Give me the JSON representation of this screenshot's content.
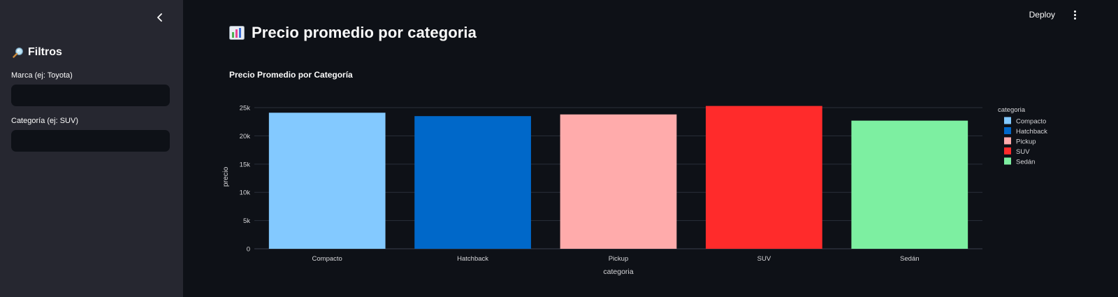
{
  "sidebar": {
    "collapse_icon": "chevron-left-icon",
    "title_icon": "magnifier-icon",
    "title": "Filtros",
    "fields": [
      {
        "label": "Marca (ej: Toyota)",
        "value": ""
      },
      {
        "label": "Categoría (ej: SUV)",
        "value": ""
      }
    ]
  },
  "header": {
    "deploy_label": "Deploy",
    "menu_icon": "kebab-menu-icon"
  },
  "main": {
    "title_icon": "bar-chart-icon",
    "title": "Precio promedio por categoria"
  },
  "colors": {
    "background": "#0e1117",
    "sidebar": "#262730",
    "grid": "#2a2f3a"
  },
  "chart_data": {
    "type": "bar",
    "title": "Precio Promedio por Categoría",
    "xlabel": "categoria",
    "ylabel": "precio",
    "categories": [
      "Compacto",
      "Hatchback",
      "Pickup",
      "SUV",
      "Sedán"
    ],
    "values": [
      24100,
      23500,
      23800,
      25300,
      22700
    ],
    "colors": [
      "#83c9ff",
      "#0068c9",
      "#ffabab",
      "#ff2b2b",
      "#7defa1"
    ],
    "ylim": [
      0,
      25500
    ],
    "yticks": [
      0,
      5000,
      10000,
      15000,
      20000,
      25000
    ],
    "ytick_labels": [
      "0",
      "5k",
      "10k",
      "15k",
      "20k",
      "25k"
    ],
    "legend_title": "categoria",
    "legend_position": "right",
    "grid": true
  }
}
